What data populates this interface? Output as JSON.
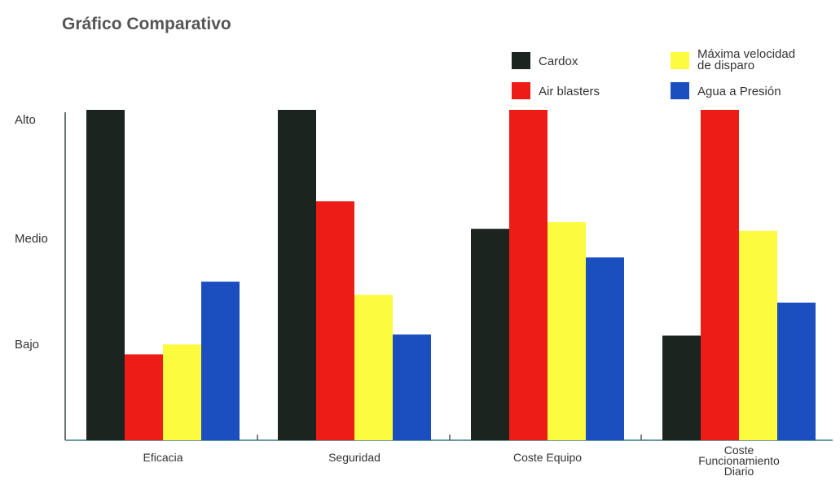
{
  "chart_data": {
    "type": "bar",
    "title": "Gráfico Comparativo",
    "categories": [
      "Eficacia",
      "Seguridad",
      "Coste Equipo",
      "Coste Funcionamiento Diario"
    ],
    "y_ticks": [
      "Alto",
      "Medio",
      "Bajo"
    ],
    "y_tick_values": [
      3,
      2,
      1
    ],
    "ylim": [
      0,
      3
    ],
    "legend_position": "top-right",
    "grid": false,
    "series": [
      {
        "name": "Cardox",
        "color": "#1c2420",
        "values": [
          3.0,
          3.0,
          1.92,
          0.95
        ]
      },
      {
        "name": "Air blasters",
        "color": "#ee1c16",
        "values": [
          0.78,
          2.17,
          3.0,
          3.0
        ]
      },
      {
        "name": "Máxima velocidad de disparo",
        "color": "#fcfb3e",
        "values": [
          0.87,
          1.32,
          1.98,
          1.9
        ]
      },
      {
        "name": "Agua a Presión",
        "color": "#1b4fc0",
        "values": [
          1.44,
          0.96,
          1.66,
          1.25
        ]
      }
    ]
  }
}
